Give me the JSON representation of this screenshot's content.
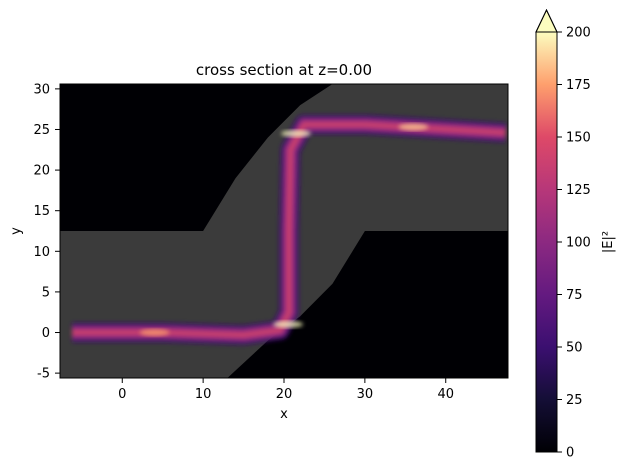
{
  "chart_data": {
    "type": "heatmap",
    "title": "cross section at z=0.00",
    "xlabel": "x",
    "ylabel": "y",
    "xlim": [
      -7.7,
      47.7
    ],
    "ylim": [
      -5.6,
      30.6
    ],
    "xticks": [
      0,
      10,
      20,
      30,
      40
    ],
    "yticks": [
      -5,
      0,
      5,
      10,
      15,
      20,
      25,
      30
    ],
    "colorbar": {
      "label": "|E|²",
      "colormap": "magma",
      "range": [
        0,
        200
      ],
      "ticks": [
        0,
        25,
        50,
        75,
        100,
        125,
        150,
        175,
        200
      ],
      "extend": "max"
    },
    "background_color": "#000004",
    "structure_color": "#3b3b3b",
    "structure": {
      "lower_waveguide_top_y": 12.5,
      "lower_waveguide_x_end": 10,
      "upper_waveguide_bottom_y": 12.5,
      "upper_waveguide_x_start": 30,
      "slab_upper_edge": [
        [
          10,
          12.5
        ],
        [
          14,
          19
        ],
        [
          18,
          24
        ],
        [
          22,
          28
        ],
        [
          26,
          30.6
        ]
      ],
      "slab_lower_edge": [
        [
          13,
          -5.6
        ],
        [
          18,
          -1
        ],
        [
          22,
          2
        ],
        [
          26,
          6
        ],
        [
          30,
          12.5
        ]
      ]
    },
    "field_path": [
      [
        -6.2,
        0
      ],
      [
        5,
        0
      ],
      [
        15,
        -0.3
      ],
      [
        19.5,
        0.3
      ],
      [
        20.6,
        2.5
      ],
      [
        20.6,
        12.5
      ],
      [
        20.8,
        22.5
      ],
      [
        22.5,
        25.6
      ],
      [
        30,
        25.6
      ],
      [
        47.4,
        24.6
      ]
    ],
    "field_peaks": [
      {
        "x": 4,
        "y": 0,
        "value": 165
      },
      {
        "x": 20.5,
        "y": 1,
        "value": 200
      },
      {
        "x": 21.5,
        "y": 24.5,
        "value": 200
      },
      {
        "x": 36,
        "y": 25.3,
        "value": 175
      }
    ]
  }
}
